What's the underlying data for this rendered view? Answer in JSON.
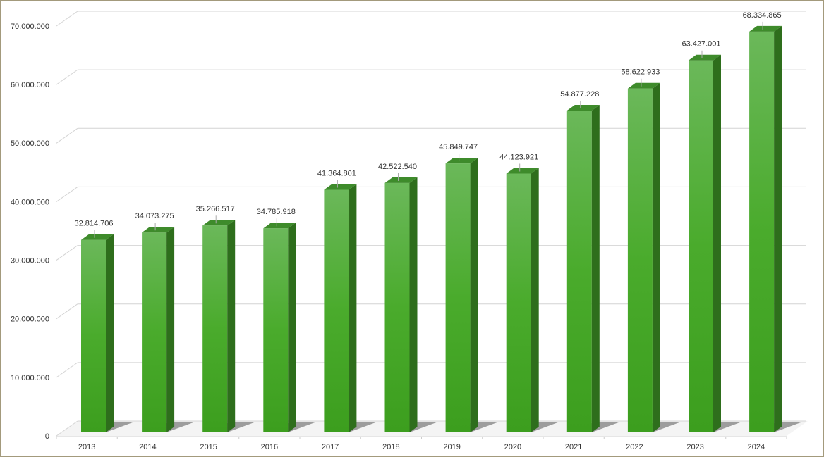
{
  "chart_data": {
    "type": "bar3d",
    "categories": [
      "2013",
      "2014",
      "2015",
      "2016",
      "2017",
      "2018",
      "2019",
      "2020",
      "2021",
      "2022",
      "2023",
      "2024"
    ],
    "values": [
      32814706,
      34073275,
      35266517,
      34785918,
      41364801,
      42522540,
      45849747,
      44123921,
      54877228,
      58622933,
      63427001,
      68334865
    ],
    "value_labels": [
      "32.814.706",
      "34.073.275",
      "35.266.517",
      "34.785.918",
      "41.364.801",
      "42.522.540",
      "45.849.747",
      "44.123.921",
      "54.877.228",
      "58.622.933",
      "63.427.001",
      "68.334.865"
    ],
    "color": "#4aa82c",
    "ylim": [
      0,
      70000000
    ],
    "yticks": [
      0,
      {
        "value": 10000000,
        "label": "10.000.000"
      },
      {
        "value": 20000000,
        "label": "20.000.000"
      },
      {
        "value": 30000000,
        "label": "30.000.000"
      },
      {
        "value": 40000000,
        "label": "40.000.000"
      },
      {
        "value": 50000000,
        "label": "50.000.000"
      },
      {
        "value": 60000000,
        "label": "60.000.000"
      },
      {
        "value": 70000000,
        "label": "70.000.000"
      }
    ],
    "grid": true
  }
}
